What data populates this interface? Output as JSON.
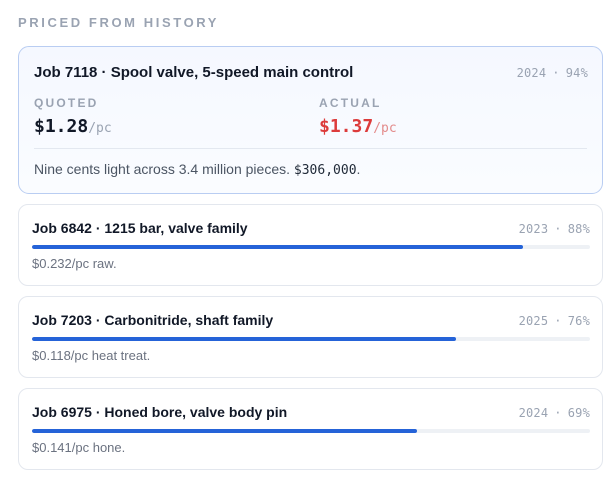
{
  "section_label": "PRICED FROM HISTORY",
  "featured": {
    "title": "Job 7118 · Spool valve, 5-speed main control",
    "year": "2024",
    "separator": "·",
    "match": "94%",
    "quoted": {
      "label": "QUOTED",
      "amount": "$1.28",
      "unit": "/pc"
    },
    "actual": {
      "label": "ACTUAL",
      "amount": "$1.37",
      "unit": "/pc"
    },
    "summary_text": "Nine cents light across 3.4 million pieces. ",
    "summary_value": "$306,000",
    "summary_end": "."
  },
  "jobs": [
    {
      "title": "Job 6842 · 1215 bar, valve family",
      "year": "2023",
      "separator": "·",
      "match": "88%",
      "match_fraction": 0.88,
      "note": "$0.232/pc raw."
    },
    {
      "title": "Job 7203 · Carbonitride, shaft family",
      "year": "2025",
      "separator": "·",
      "match": "76%",
      "match_fraction": 0.76,
      "note": "$0.118/pc heat treat."
    },
    {
      "title": "Job 6975 · Honed bore, valve body pin",
      "year": "2024",
      "separator": "·",
      "match": "69%",
      "match_fraction": 0.69,
      "note": "$0.141/pc hone."
    }
  ],
  "colors": {
    "accent": "#2563d8",
    "actual_price": "#dc3b3b",
    "featured_border": "#b9cdf2"
  }
}
